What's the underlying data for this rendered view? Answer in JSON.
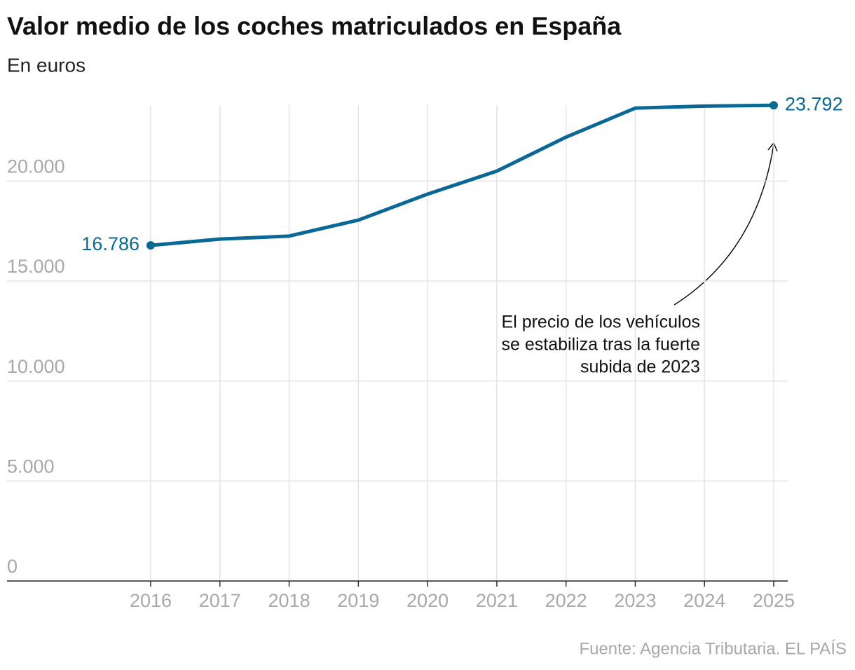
{
  "chart_data": {
    "type": "line",
    "title": "Valor medio de los coches matriculados en España",
    "subtitle": "En euros",
    "categories": [
      "2016",
      "2017",
      "2018",
      "2019",
      "2020",
      "2021",
      "2022",
      "2023",
      "2024",
      "2025"
    ],
    "values": [
      16786,
      17100,
      17250,
      18050,
      19350,
      20500,
      22200,
      23650,
      23750,
      23792
    ],
    "value_labels": [
      "16.786",
      null,
      null,
      null,
      null,
      null,
      null,
      null,
      null,
      "23.792"
    ],
    "color": "#0a6896",
    "ylim": [
      0,
      23800
    ],
    "yticks": [
      0,
      {
        "value": 5000,
        "label": "5.000"
      },
      {
        "value": 10000,
        "label": "10.000"
      },
      {
        "value": 15000,
        "label": "15.000"
      },
      {
        "value": 20000,
        "label": "20.000"
      }
    ],
    "grid": true,
    "annotation": [
      "El precio de los vehículos",
      "se estabiliza tras la fuerte",
      "subida de 2023"
    ],
    "source": "Fuente: Agencia Tributaria. EL PAÍS"
  }
}
